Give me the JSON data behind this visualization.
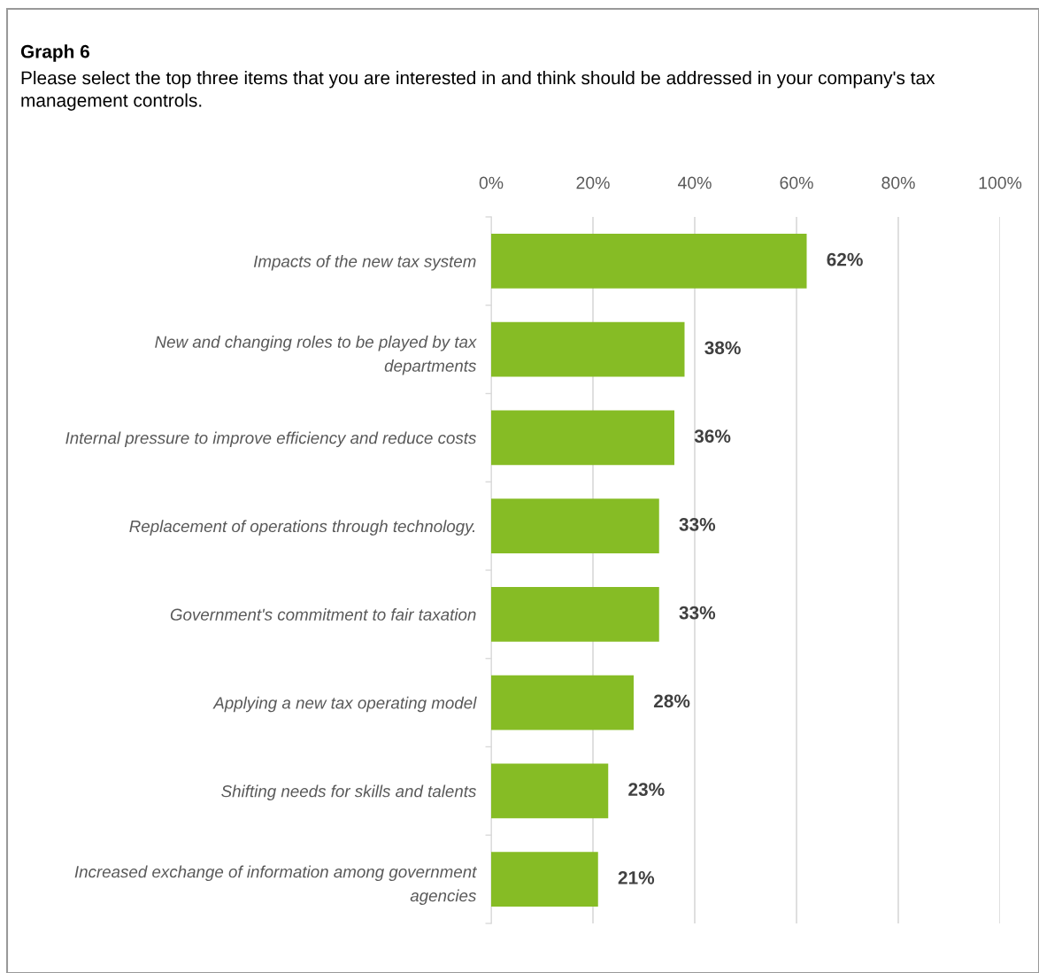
{
  "chart_data": {
    "type": "bar",
    "orientation": "horizontal",
    "title": "Graph 6",
    "subtitle": "Please select the top three items that you are interested in and think should be addressed in your company's tax management controls.",
    "categories": [
      "Impacts of the new tax system",
      "New and changing roles to be played by tax\ndepartments",
      "Internal pressure to improve efficiency and reduce costs",
      "Replacement of operations through technology.",
      "Government's commitment to fair taxation",
      "Applying a new tax operating model",
      "Shifting needs for skills and talents",
      "Increased exchange of information among government\nagencies"
    ],
    "values": [
      62,
      38,
      36,
      33,
      33,
      28,
      23,
      21
    ],
    "color": "#86bc25",
    "xlim": [
      0,
      100
    ],
    "xticks": [
      {
        "value": 0,
        "label": "0%"
      },
      {
        "value": 20,
        "label": "20%"
      },
      {
        "value": 40,
        "label": "40%"
      },
      {
        "value": 60,
        "label": "60%"
      },
      {
        "value": 80,
        "label": "80%"
      },
      {
        "value": 100,
        "label": "100%"
      }
    ],
    "value_labels": [
      "62%",
      "38%",
      "36%",
      "33%",
      "33%",
      "28%",
      "23%",
      "21%"
    ],
    "grid": "x",
    "legend": false
  }
}
